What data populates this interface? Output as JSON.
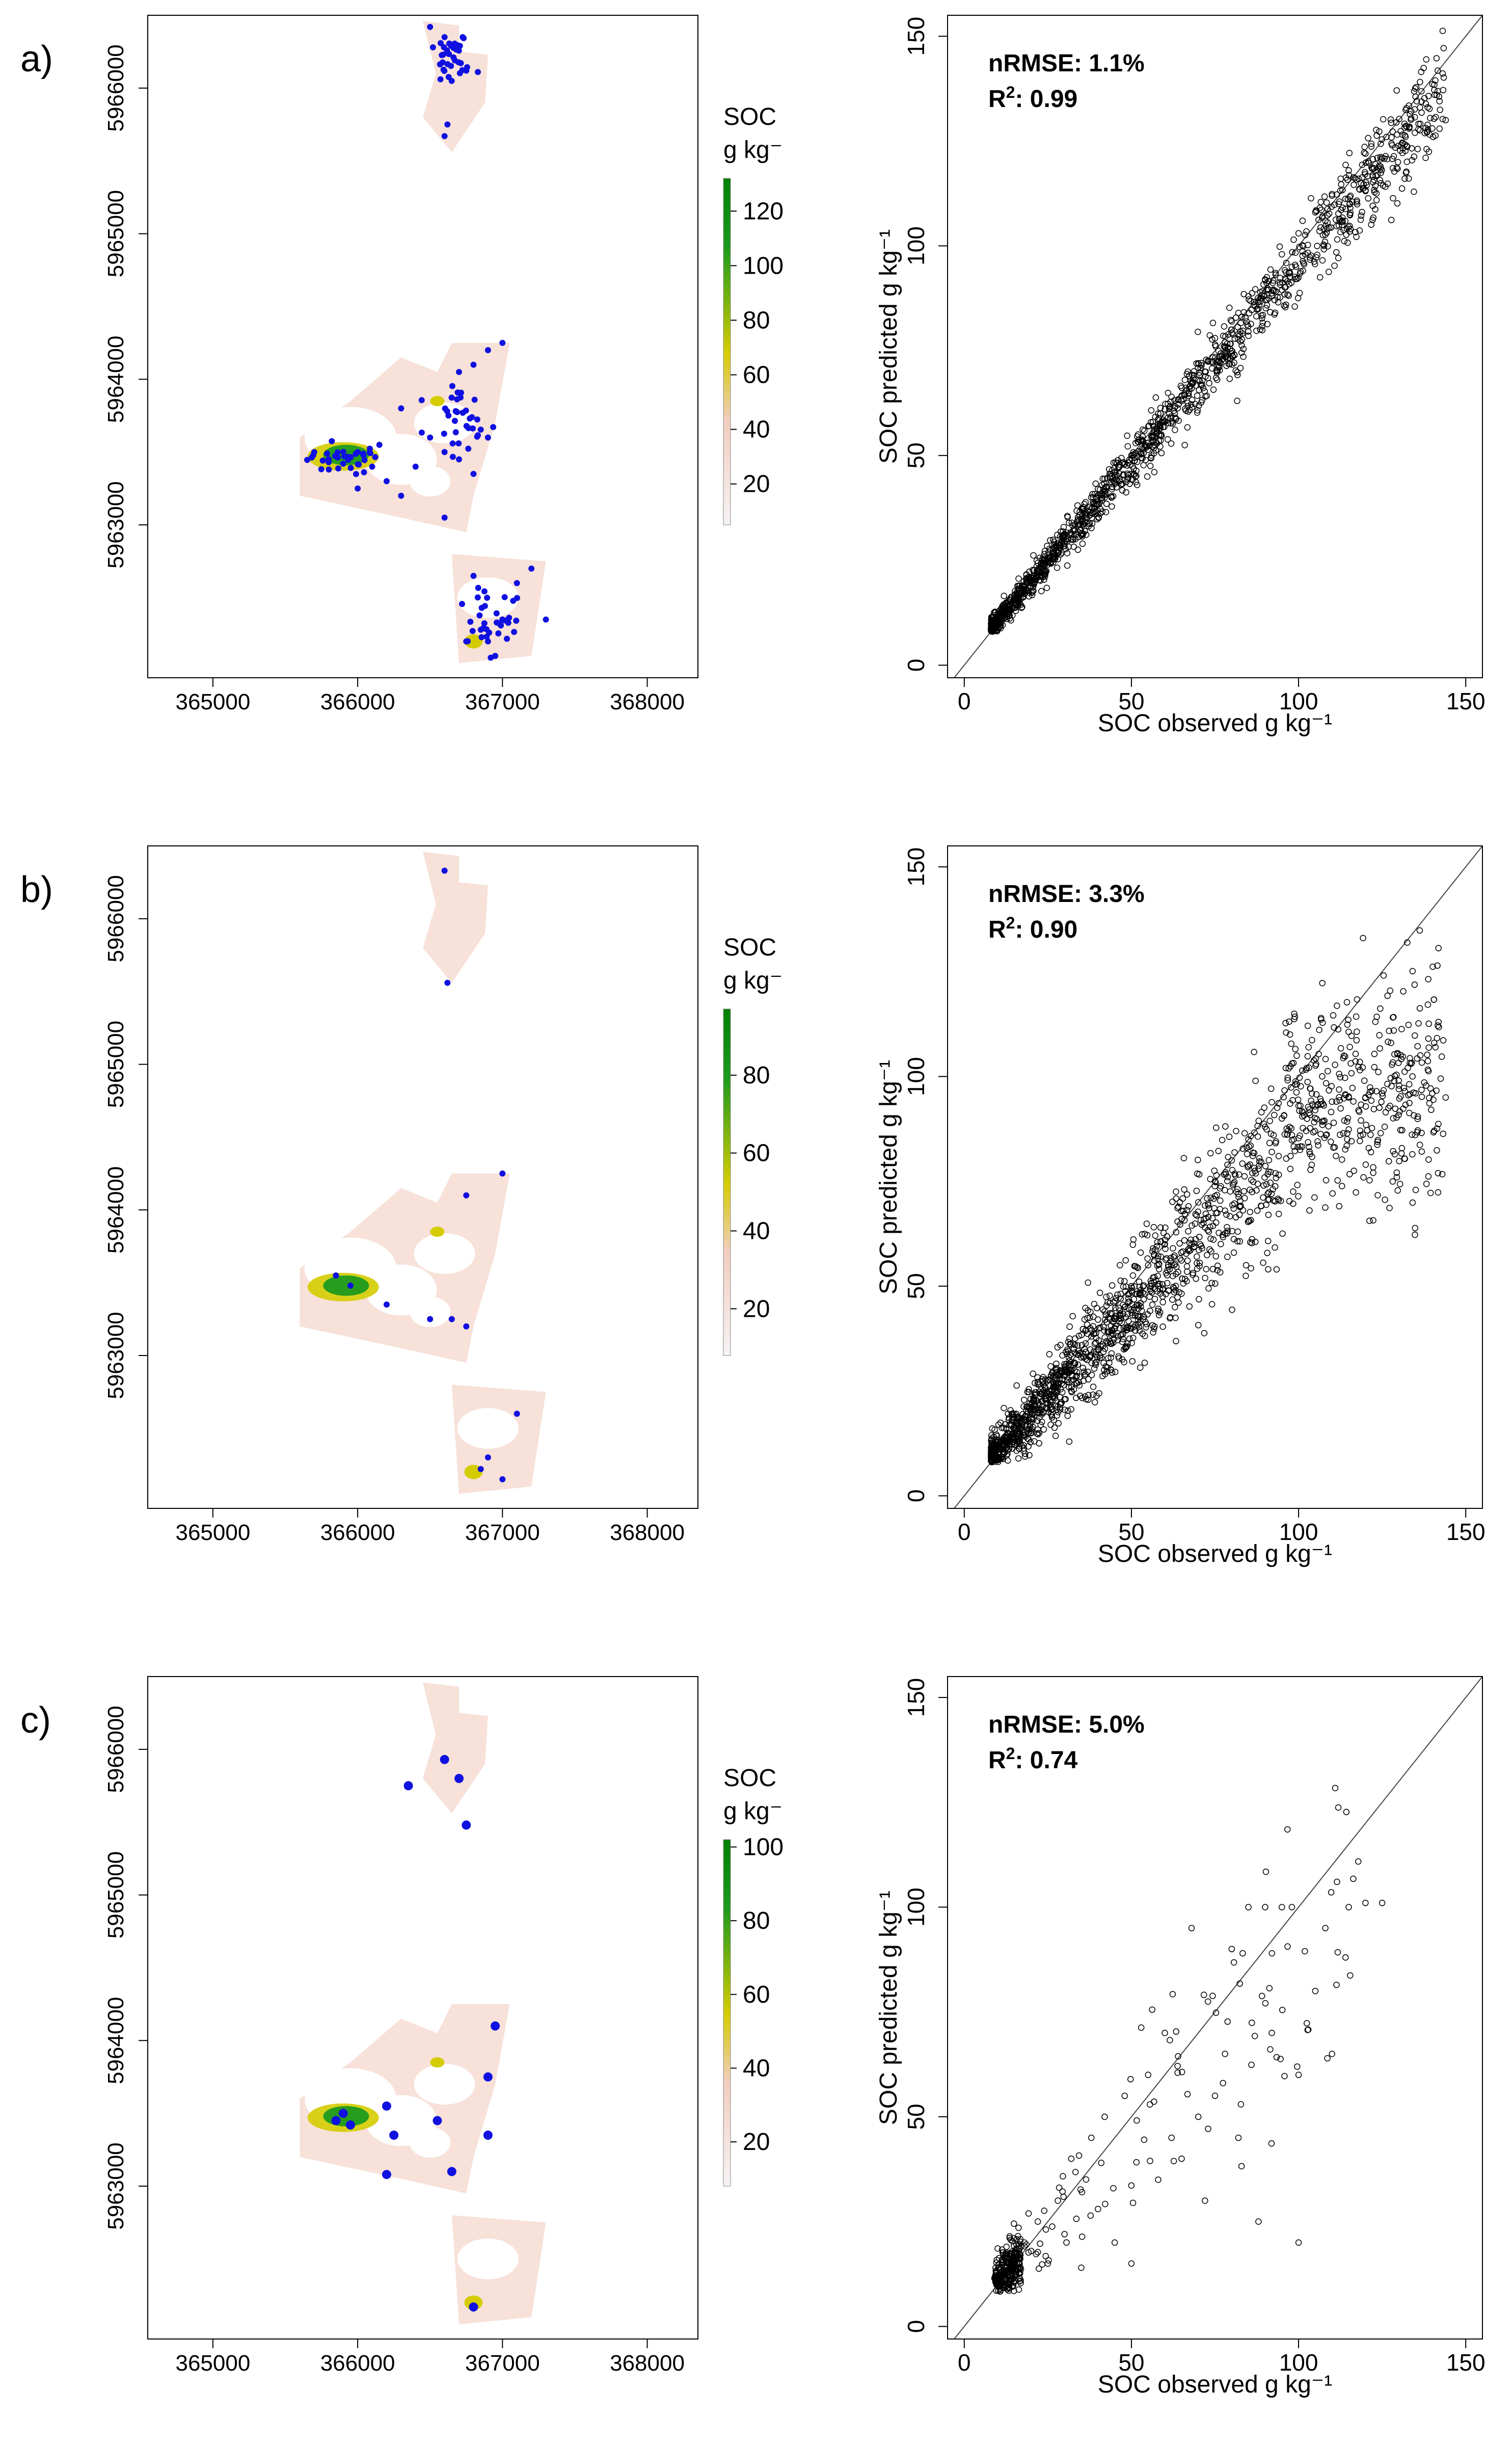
{
  "colors": {
    "map_low": "#f6f3f4",
    "map_mid": "#f2cdbf",
    "map_yellow": "#d4cc00",
    "map_green": "#1e9a1e",
    "map_dark_green": "#008000",
    "points": "#1010e0",
    "scatter_marker": "#000000"
  },
  "panels": [
    {
      "panel_label": "a)",
      "colorbar": {
        "title_line1": "SOC",
        "title_line2": "g kg⁻",
        "ticks": [
          "120",
          "100",
          "80",
          "60",
          "40",
          "20"
        ],
        "range": [
          5,
          132
        ]
      },
      "stats": {
        "nrmse": "nRMSE: 1.1%",
        "r2_prefix": "R",
        "r2_sup": "2",
        "r2_value": ": 0.99"
      }
    },
    {
      "panel_label": "b)",
      "colorbar": {
        "title_line1": "SOC",
        "title_line2": "g kg⁻",
        "ticks": [
          "80",
          "60",
          "40",
          "20"
        ],
        "range": [
          8,
          97
        ]
      },
      "stats": {
        "nrmse": "nRMSE: 3.3%",
        "r2_prefix": "R",
        "r2_sup": "2",
        "r2_value": ": 0.90"
      }
    },
    {
      "panel_label": "c)",
      "colorbar": {
        "title_line1": "SOC",
        "title_line2": "g kg⁻",
        "ticks": [
          "100",
          "80",
          "60",
          "40",
          "20"
        ],
        "range": [
          8,
          102
        ]
      },
      "stats": {
        "nrmse": "nRMSE: 5.0%",
        "r2_prefix": "R",
        "r2_sup": "2",
        "r2_value": ": 0.74"
      }
    }
  ],
  "chart_data": [
    {
      "type": "heatmap",
      "description_free": true,
      "x_ticks": [
        "365000",
        "366000",
        "367000",
        "368000"
      ],
      "y_ticks": [
        "5963000",
        "5964000",
        "5965000",
        "5966000"
      ],
      "xlim": [
        364550,
        368350
      ],
      "ylim": [
        5961950,
        5966500
      ],
      "points_count_hint": "dense",
      "sample_points": [
        [
          366500,
          5966420
        ],
        [
          366600,
          5966350
        ],
        [
          366750,
          5966120
        ],
        [
          366620,
          5965750
        ],
        [
          366600,
          5965670
        ],
        [
          366520,
          5966280
        ],
        [
          366830,
          5966110
        ],
        [
          365700,
          5963500
        ],
        [
          365800,
          5963450
        ],
        [
          365900,
          5963420
        ],
        [
          366000,
          5963500
        ],
        [
          366100,
          5963400
        ],
        [
          366200,
          5963300
        ],
        [
          366300,
          5963200
        ],
        [
          366500,
          5963600
        ],
        [
          366700,
          5963450
        ],
        [
          366800,
          5963350
        ],
        [
          366900,
          5963600
        ],
        [
          366300,
          5963800
        ],
        [
          366800,
          5964100
        ],
        [
          366900,
          5964200
        ],
        [
          367000,
          5964250
        ],
        [
          366700,
          5964050
        ],
        [
          366600,
          5963500
        ],
        [
          366400,
          5963400
        ],
        [
          366150,
          5963550
        ],
        [
          366000,
          5963250
        ],
        [
          366600,
          5963050
        ],
        [
          366900,
          5962200
        ],
        [
          366850,
          5962280
        ],
        [
          367000,
          5962350
        ],
        [
          367200,
          5962700
        ],
        [
          367100,
          5962600
        ],
        [
          366800,
          5962650
        ],
        [
          366750,
          5962200
        ],
        [
          367300,
          5962350
        ],
        [
          366950,
          5962100
        ]
      ]
    },
    {
      "type": "scatter",
      "xlabel": "SOC observed g kg⁻¹",
      "ylabel": "SOC predicted g kg⁻¹",
      "x_ticks": [
        "0",
        "50",
        "100",
        "150"
      ],
      "y_ticks": [
        "0",
        "50",
        "100",
        "150"
      ],
      "xlim": [
        -5,
        155
      ],
      "ylim": [
        -3,
        155
      ],
      "points": [
        [
          8,
          9
        ],
        [
          10,
          10
        ],
        [
          12,
          12
        ],
        [
          15,
          15
        ],
        [
          18,
          17
        ],
        [
          20,
          20
        ],
        [
          22,
          22
        ],
        [
          25,
          24
        ],
        [
          28,
          29
        ],
        [
          30,
          31
        ],
        [
          32,
          30
        ],
        [
          35,
          35
        ],
        [
          38,
          40
        ],
        [
          40,
          42
        ],
        [
          42,
          40
        ],
        [
          45,
          46
        ],
        [
          48,
          48
        ],
        [
          50,
          50
        ],
        [
          52,
          55
        ],
        [
          55,
          53
        ],
        [
          58,
          60
        ],
        [
          60,
          58
        ],
        [
          62,
          64
        ],
        [
          65,
          63
        ],
        [
          68,
          66
        ],
        [
          70,
          72
        ],
        [
          72,
          70
        ],
        [
          75,
          78
        ],
        [
          78,
          76
        ],
        [
          80,
          82
        ],
        [
          82,
          79
        ],
        [
          85,
          88
        ],
        [
          88,
          85
        ],
        [
          90,
          92
        ],
        [
          92,
          88
        ],
        [
          95,
          98
        ],
        [
          98,
          95
        ],
        [
          100,
          103
        ],
        [
          102,
          98
        ],
        [
          105,
          108
        ],
        [
          108,
          106
        ],
        [
          110,
          112
        ],
        [
          112,
          110
        ],
        [
          115,
          118
        ],
        [
          118,
          116
        ],
        [
          120,
          122
        ],
        [
          125,
          121
        ],
        [
          128,
          124
        ],
        [
          132,
          126
        ],
        [
          138,
          121
        ],
        [
          140,
          128
        ],
        [
          144,
          130
        ]
      ],
      "identity_line": true
    },
    {
      "type": "heatmap",
      "x_ticks": [
        "365000",
        "366000",
        "367000",
        "368000"
      ],
      "y_ticks": [
        "5963000",
        "5964000",
        "5965000",
        "5966000"
      ],
      "xlim": [
        364550,
        368350
      ],
      "ylim": [
        5961950,
        5966500
      ],
      "sample_points": [
        [
          366600,
          5966330
        ],
        [
          366620,
          5965560
        ],
        [
          365950,
          5963480
        ],
        [
          366200,
          5963350
        ],
        [
          366750,
          5964100
        ],
        [
          367000,
          5964250
        ],
        [
          366500,
          5963250
        ],
        [
          366650,
          5963250
        ],
        [
          366750,
          5963200
        ],
        [
          367100,
          5962600
        ],
        [
          366850,
          5962220
        ],
        [
          366900,
          5962300
        ],
        [
          367000,
          5962150
        ],
        [
          365850,
          5963550
        ]
      ]
    },
    {
      "type": "scatter",
      "xlabel": "SOC observed g kg⁻¹",
      "ylabel": "SOC predicted g kg⁻¹",
      "x_ticks": [
        "0",
        "50",
        "100",
        "150"
      ],
      "y_ticks": [
        "0",
        "50",
        "100",
        "150"
      ],
      "xlim": [
        -5,
        155
      ],
      "ylim": [
        -3,
        155
      ],
      "points": [
        [
          8,
          10
        ],
        [
          10,
          12
        ],
        [
          12,
          14
        ],
        [
          15,
          16
        ],
        [
          18,
          18
        ],
        [
          20,
          20
        ],
        [
          22,
          20
        ],
        [
          25,
          22
        ],
        [
          28,
          26
        ],
        [
          30,
          30
        ],
        [
          32,
          25
        ],
        [
          35,
          33
        ],
        [
          38,
          38
        ],
        [
          40,
          35
        ],
        [
          42,
          44
        ],
        [
          45,
          40
        ],
        [
          48,
          45
        ],
        [
          50,
          50
        ],
        [
          52,
          42
        ],
        [
          55,
          55
        ],
        [
          58,
          50
        ],
        [
          60,
          60
        ],
        [
          62,
          55
        ],
        [
          65,
          66
        ],
        [
          68,
          60
        ],
        [
          70,
          70
        ],
        [
          72,
          64
        ],
        [
          75,
          75
        ],
        [
          78,
          68
        ],
        [
          80,
          80
        ],
        [
          82,
          72
        ],
        [
          85,
          85
        ],
        [
          88,
          78
        ],
        [
          90,
          88
        ],
        [
          92,
          82
        ],
        [
          95,
          90
        ],
        [
          98,
          86
        ],
        [
          100,
          93
        ],
        [
          105,
          92
        ],
        [
          110,
          94
        ],
        [
          115,
          95
        ],
        [
          120,
          95
        ],
        [
          125,
          96
        ],
        [
          130,
          97
        ],
        [
          135,
          96
        ],
        [
          140,
          96
        ],
        [
          144,
          95
        ]
      ],
      "identity_line": true
    },
    {
      "type": "heatmap",
      "x_ticks": [
        "365000",
        "366000",
        "367000",
        "368000"
      ],
      "y_ticks": [
        "5963000",
        "5964000",
        "5965000",
        "5966000"
      ],
      "xlim": [
        364550,
        368350
      ],
      "ylim": [
        5961950,
        5966500
      ],
      "sample_points": [
        [
          366600,
          5965930
        ],
        [
          366700,
          5965800
        ],
        [
          366350,
          5965750
        ],
        [
          366750,
          5965480
        ],
        [
          365850,
          5963450
        ],
        [
          365900,
          5963500
        ],
        [
          365950,
          5963420
        ],
        [
          366200,
          5963550
        ],
        [
          366250,
          5963350
        ],
        [
          366550,
          5963450
        ],
        [
          366650,
          5963100
        ],
        [
          366900,
          5963350
        ],
        [
          366900,
          5963750
        ],
        [
          366950,
          5964100
        ],
        [
          366200,
          5963080
        ],
        [
          366800,
          5962170
        ]
      ]
    },
    {
      "type": "scatter",
      "xlabel": "SOC observed g kg⁻¹",
      "ylabel": "SOC predicted g kg⁻¹",
      "x_ticks": [
        "0",
        "50",
        "100",
        "150"
      ],
      "y_ticks": [
        "0",
        "50",
        "100",
        "150"
      ],
      "xlim": [
        -5,
        155
      ],
      "ylim": [
        -3,
        155
      ],
      "points": [
        [
          10,
          12
        ],
        [
          12,
          13
        ],
        [
          14,
          14
        ],
        [
          15,
          15
        ],
        [
          18,
          20
        ],
        [
          20,
          18
        ],
        [
          22,
          25
        ],
        [
          25,
          15
        ],
        [
          28,
          30
        ],
        [
          30,
          22
        ],
        [
          32,
          40
        ],
        [
          35,
          14
        ],
        [
          38,
          45
        ],
        [
          40,
          28
        ],
        [
          42,
          50
        ],
        [
          45,
          20
        ],
        [
          48,
          55
        ],
        [
          50,
          15
        ],
        [
          55,
          60
        ],
        [
          58,
          35
        ],
        [
          60,
          70
        ],
        [
          62,
          45
        ],
        [
          65,
          40
        ],
        [
          68,
          95
        ],
        [
          70,
          50
        ],
        [
          72,
          30
        ],
        [
          75,
          55
        ],
        [
          78,
          65
        ],
        [
          80,
          90
        ],
        [
          82,
          45
        ],
        [
          85,
          100
        ],
        [
          88,
          25
        ],
        [
          90,
          100
        ],
        [
          92,
          70
        ],
        [
          95,
          100
        ],
        [
          98,
          100
        ],
        [
          100,
          60
        ],
        [
          105,
          80
        ],
        [
          108,
          95
        ],
        [
          110,
          65
        ],
        [
          115,
          100
        ],
        [
          120,
          101
        ],
        [
          125,
          101
        ],
        [
          100,
          20
        ]
      ],
      "identity_line": true
    }
  ]
}
